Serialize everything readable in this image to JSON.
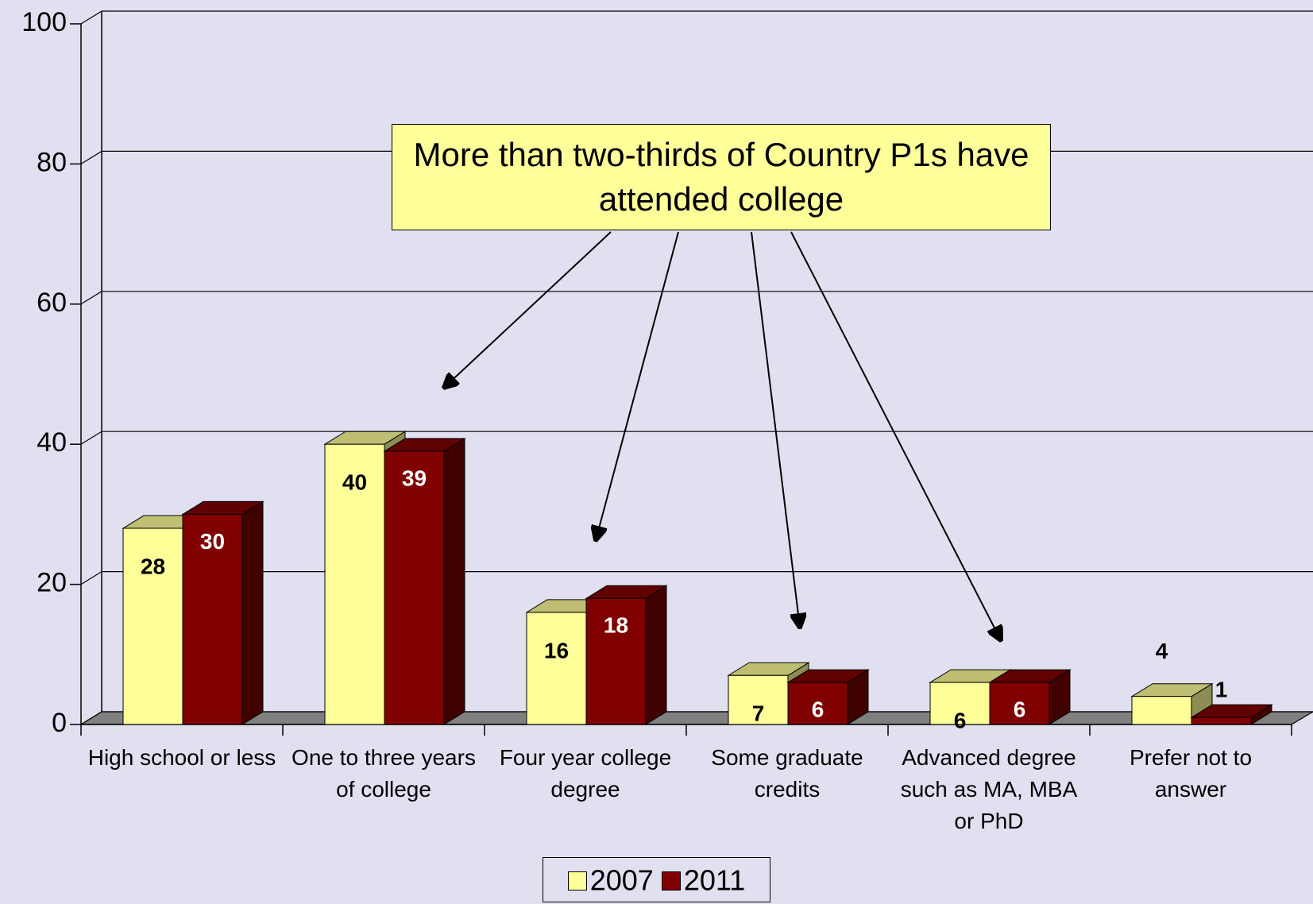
{
  "chart_data": {
    "type": "bar3d",
    "annotation": "More than two-thirds of Country P1s have attended college",
    "categories": [
      "High school or less",
      "One to three years of college",
      "Four year college degree",
      "Some graduate credits",
      "Advanced degree such as MA, MBA or PhD",
      "Prefer not to answer"
    ],
    "series": [
      {
        "name": "2007",
        "color": "#ffff99",
        "values": [
          28,
          40,
          16,
          7,
          6,
          4
        ]
      },
      {
        "name": "2011",
        "color": "#800000",
        "values": [
          30,
          39,
          18,
          6,
          6,
          1
        ]
      }
    ],
    "ylim": [
      0,
      100
    ],
    "yticks": [
      0,
      20,
      40,
      60,
      80,
      100
    ],
    "grid": true,
    "legend": "bottom"
  }
}
